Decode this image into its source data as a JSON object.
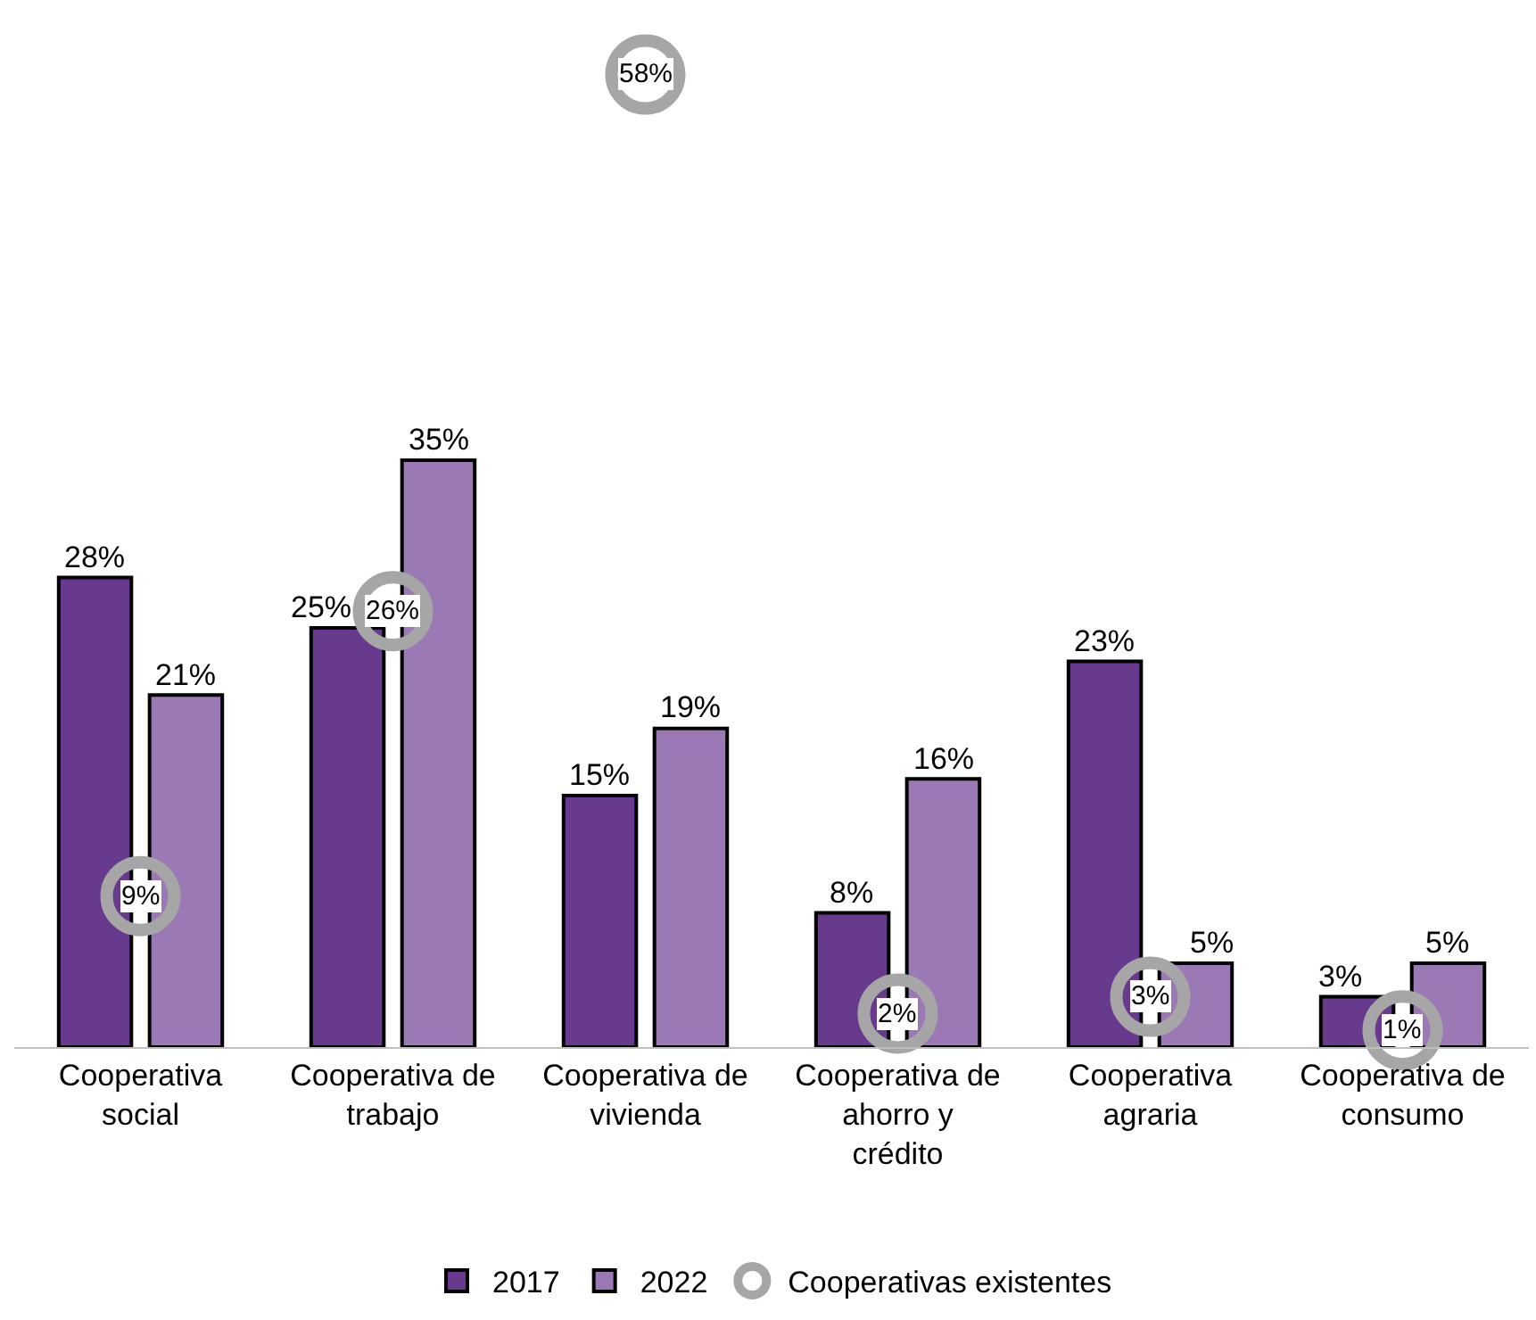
{
  "chart_data": {
    "type": "bar",
    "categories": [
      "Cooperativa social",
      "Cooperativa de trabajo",
      "Cooperativa de vivienda",
      "Cooperativa de ahorro y crédito",
      "Cooperativa agraria",
      "Cooperativa de consumo"
    ],
    "series": [
      {
        "name": "2017",
        "color": "#673a8e",
        "values": [
          28,
          25,
          15,
          8,
          23,
          3
        ],
        "value_labels": [
          "28%",
          "25%",
          "15%",
          "8%",
          "23%",
          "3%"
        ]
      },
      {
        "name": "2022",
        "color": "#9b79b5",
        "values": [
          21,
          35,
          19,
          16,
          5,
          5
        ],
        "value_labels": [
          "21%",
          "35%",
          "19%",
          "16%",
          "5%",
          "5%"
        ]
      },
      {
        "name": "Cooperativas existentes",
        "type": "scatter",
        "color": "#a6a6a6",
        "values": [
          9,
          26,
          58,
          2,
          3,
          1
        ],
        "value_labels": [
          "9%",
          "26%",
          "58%",
          "2%",
          "3%",
          "1%"
        ]
      }
    ],
    "legend": "bottom",
    "grid": false,
    "marker": "circle"
  }
}
